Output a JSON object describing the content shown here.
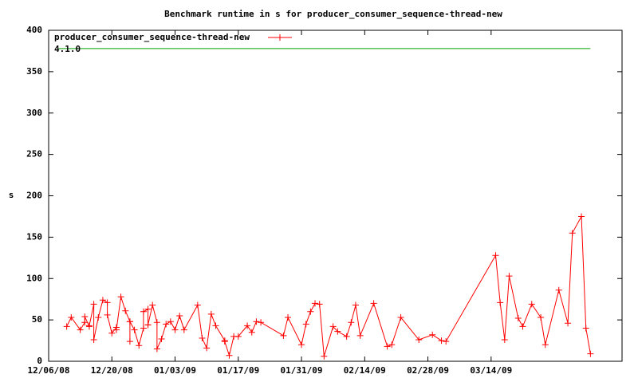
{
  "chart_data": {
    "type": "line",
    "title": "Benchmark runtime in s for producer_consumer_sequence-thread-new",
    "y_label": "s",
    "xlim": [
      "12/06/08",
      "04/12/09"
    ],
    "xticks": [
      "12/06/08",
      "12/20/08",
      "01/03/09",
      "01/17/09",
      "01/31/09",
      "02/14/09",
      "02/28/09",
      "03/14/09"
    ],
    "ylim": [
      0,
      400
    ],
    "yticks": [
      0,
      50,
      100,
      150,
      200,
      250,
      300,
      350,
      400
    ],
    "grid": false,
    "legend": "top-left",
    "series": [
      {
        "name": "producer_consumer_sequence-thread-new",
        "color": "#ff0000",
        "marker": "+",
        "x": [
          "12/10/08",
          "12/11/08",
          "12/13/08",
          "12/14/08",
          "12/14/08",
          "12/15/08",
          "12/15/08",
          "12/16/08",
          "12/16/08",
          "12/17/08",
          "12/18/08",
          "12/19/08",
          "12/19/08",
          "12/20/08",
          "12/21/08",
          "12/21/08",
          "12/22/08",
          "12/23/08",
          "12/24/08",
          "12/24/08",
          "12/24/08",
          "12/25/08",
          "12/26/08",
          "12/27/08",
          "12/27/08",
          "12/28/08",
          "12/28/08",
          "12/28/08",
          "12/29/08",
          "12/30/08",
          "12/30/08",
          "12/31/08",
          "01/01/09",
          "01/02/09",
          "01/03/09",
          "01/04/09",
          "01/05/09",
          "01/08/09",
          "01/09/09",
          "01/10/09",
          "01/11/09",
          "01/12/09",
          "01/14/09",
          "01/14/09",
          "01/15/09",
          "01/16/09",
          "01/17/09",
          "01/19/09",
          "01/20/09",
          "01/21/09",
          "01/22/09",
          "01/27/09",
          "01/28/09",
          "01/31/09",
          "02/01/09",
          "02/02/09",
          "02/03/09",
          "02/04/09",
          "02/05/09",
          "02/07/09",
          "02/08/09",
          "02/10/09",
          "02/11/09",
          "02/12/09",
          "02/13/09",
          "02/16/09",
          "02/19/09",
          "02/20/09",
          "02/22/09",
          "02/26/09",
          "03/01/09",
          "03/03/09",
          "03/04/09",
          "03/15/09",
          "03/16/09",
          "03/17/09",
          "03/18/09",
          "03/20/09",
          "03/21/09",
          "03/23/09",
          "03/25/09",
          "03/26/09",
          "03/29/09",
          "03/31/09",
          "04/01/09",
          "04/03/09",
          "04/04/09",
          "04/05/09"
        ],
        "values": [
          42,
          53,
          38,
          47,
          54,
          42,
          43,
          69,
          26,
          53,
          74,
          71,
          56,
          34,
          41,
          38,
          78,
          61,
          48,
          24,
          48,
          38,
          19,
          40,
          60,
          63,
          44,
          44,
          68,
          47,
          15,
          27,
          45,
          48,
          38,
          55,
          38,
          68,
          28,
          16,
          57,
          43,
          25,
          24,
          7,
          30,
          30,
          43,
          35,
          48,
          47,
          31,
          53,
          20,
          45,
          60,
          70,
          69,
          6,
          42,
          36,
          30,
          47,
          68,
          31,
          70,
          18,
          20,
          53,
          26,
          32,
          25,
          24,
          128,
          71,
          26,
          103,
          52,
          42,
          69,
          53,
          20,
          86,
          46,
          155,
          175,
          40,
          9
        ]
      },
      {
        "name": "4.1.0",
        "color": "#00a000",
        "x": [
          "12/08/08",
          "04/05/09"
        ],
        "values": [
          378,
          378
        ]
      }
    ]
  }
}
